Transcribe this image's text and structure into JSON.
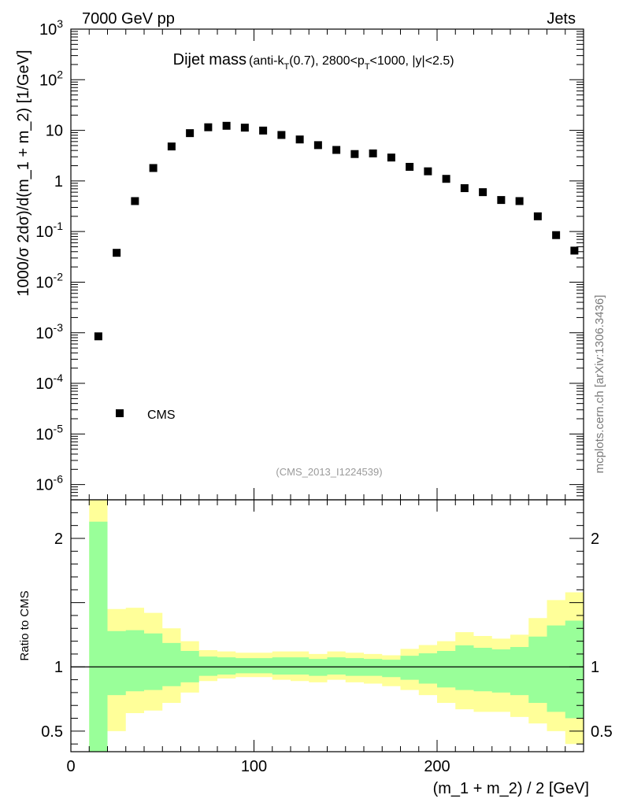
{
  "header": {
    "left": "7000 GeV pp",
    "right": "Jets",
    "side_label": "mcplots.cern.ch [arXiv:1306.3436]"
  },
  "chart_data": [
    {
      "type": "scatter",
      "panel": "main",
      "title_main": "Dijet mass",
      "title_detail": "(anti-k_T(0.7), 2800<p_T<1000, |y|<2.5)",
      "watermark": "(CMS_2013_I1224539)",
      "ylabel": "1000/σ 2dσ)/d(m_1 + m_2) [1/GeV]",
      "y_scale": "log",
      "ylim": [
        5e-07,
        1000
      ],
      "xlim": [
        0,
        280
      ],
      "y_ticks": [
        {
          "v": 1e-06,
          "m": "10",
          "e": "-6"
        },
        {
          "v": 1e-05,
          "m": "10",
          "e": "-5"
        },
        {
          "v": 0.0001,
          "m": "10",
          "e": "-4"
        },
        {
          "v": 0.001,
          "m": "10",
          "e": "-3"
        },
        {
          "v": 0.01,
          "m": "10",
          "e": "-2"
        },
        {
          "v": 0.1,
          "m": "10",
          "e": "-1"
        },
        {
          "v": 1,
          "m": "1",
          "e": ""
        },
        {
          "v": 10,
          "m": "10",
          "e": ""
        },
        {
          "v": 100,
          "m": "10",
          "e": "2"
        },
        {
          "v": 1000,
          "m": "10",
          "e": "3"
        }
      ],
      "legend": "top-left",
      "series": [
        {
          "name": "CMS",
          "marker": "square",
          "color": "#000000",
          "x": [
            15,
            25,
            35,
            45,
            55,
            65,
            75,
            85,
            95,
            105,
            115,
            125,
            135,
            145,
            155,
            165,
            175,
            185,
            195,
            205,
            215,
            225,
            235,
            245,
            255,
            265,
            275
          ],
          "y": [
            0.00085,
            0.038,
            0.4,
            1.8,
            4.8,
            8.8,
            11.5,
            12.3,
            11.3,
            9.9,
            8.1,
            6.6,
            5.1,
            4.1,
            3.4,
            3.5,
            2.9,
            1.9,
            1.55,
            1.1,
            0.72,
            0.6,
            0.42,
            0.4,
            0.2,
            0.085,
            0.042
          ]
        }
      ]
    },
    {
      "type": "area",
      "panel": "ratio",
      "ylabel": "Ratio to CMS",
      "xlabel": "(m_1 + m_2) / 2 [GeV]",
      "ylim": [
        0.34,
        2.3
      ],
      "xlim": [
        0,
        280
      ],
      "x_tick_labels": [
        "0",
        "100",
        "200"
      ],
      "y_tick_labels": [
        "0.5",
        "1",
        "2"
      ],
      "reference_line": 1,
      "bin_edges": [
        10,
        20,
        30,
        40,
        50,
        60,
        70,
        80,
        90,
        100,
        110,
        120,
        130,
        140,
        150,
        160,
        170,
        180,
        190,
        200,
        210,
        220,
        230,
        240,
        250,
        260,
        270,
        280
      ],
      "bands": [
        {
          "name": "outer",
          "color": "#ffff99",
          "lo": [
            0.34,
            0.5,
            0.64,
            0.66,
            0.72,
            0.8,
            0.89,
            0.91,
            0.92,
            0.92,
            0.9,
            0.89,
            0.88,
            0.9,
            0.88,
            0.87,
            0.85,
            0.82,
            0.78,
            0.72,
            0.67,
            0.65,
            0.65,
            0.61,
            0.56,
            0.5,
            0.4
          ],
          "hi": [
            2.3,
            1.45,
            1.46,
            1.42,
            1.3,
            1.2,
            1.13,
            1.12,
            1.11,
            1.11,
            1.12,
            1.12,
            1.1,
            1.12,
            1.11,
            1.1,
            1.09,
            1.14,
            1.17,
            1.2,
            1.27,
            1.24,
            1.22,
            1.25,
            1.38,
            1.52,
            1.58
          ]
        },
        {
          "name": "inner",
          "color": "#99ff99",
          "lo": [
            0.34,
            0.78,
            0.81,
            0.82,
            0.85,
            0.88,
            0.93,
            0.94,
            0.95,
            0.95,
            0.94,
            0.94,
            0.93,
            0.94,
            0.93,
            0.93,
            0.92,
            0.9,
            0.87,
            0.84,
            0.82,
            0.81,
            0.8,
            0.78,
            0.72,
            0.65,
            0.6
          ]
        }
      ]
    }
  ]
}
